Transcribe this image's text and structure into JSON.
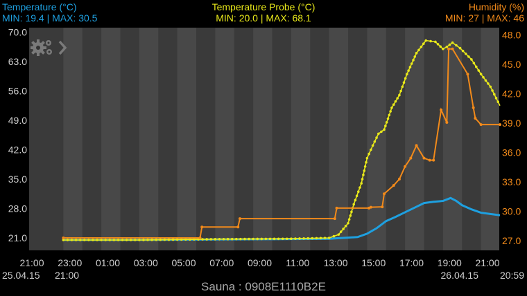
{
  "header": {
    "left_title": "Temperature (°C)",
    "left_minmax": "MIN: 19.4 | MAX: 30.5",
    "center_title": "Temperature Probe (°C)",
    "center_minmax": "MIN: 20.0 | MAX: 68.1",
    "right_title": "Humidity (%)",
    "right_minmax": "MIN: 27 | MAX: 46"
  },
  "footer": {
    "device": "Sauna : 0908E1110B2E"
  },
  "dates": {
    "start_date": "25.04.15",
    "start_hour": "21:00",
    "end_date": "26.04.15",
    "end_hour": "20:59"
  },
  "settings": {
    "icon": "gear-icon",
    "arrow_icon": "chevron-right-icon"
  },
  "colors": {
    "temperature": "#1ea0e0",
    "probe": "#e8e81a",
    "humidity": "#f28a1a"
  },
  "chart_data": {
    "type": "line",
    "x_unit": "hours",
    "x_tick_labels": [
      "21:00",
      "23:00",
      "01:00",
      "03:00",
      "05:00",
      "07:00",
      "09:00",
      "11:00",
      "13:00",
      "15:00",
      "17:00",
      "19:00",
      "21:00"
    ],
    "x_tick_hours": [
      0,
      2,
      4,
      6,
      8,
      10,
      12,
      14,
      16,
      18,
      20,
      22,
      24
    ],
    "left_axis": {
      "ticks": [
        "21.0",
        "28.0",
        "35.0",
        "42.0",
        "49.0",
        "56.0",
        "63.0",
        "70.0"
      ],
      "ylim": [
        21,
        70
      ]
    },
    "right_axis": {
      "ticks": [
        "27.0",
        "30.0",
        "33.0",
        "36.0",
        "39.0",
        "42.0",
        "45.0",
        "48.0"
      ],
      "ylim": [
        27,
        48
      ]
    },
    "series": [
      {
        "name": "Temperature (°C)",
        "axis": "left",
        "x": [
          1,
          4,
          8,
          12,
          15,
          16.5,
          17,
          17.5,
          18,
          18.5,
          19,
          19.5,
          20,
          20.5,
          21,
          21.4,
          21.7,
          22,
          22.5,
          23,
          24
        ],
        "y": [
          20.5,
          20.5,
          20.6,
          20.7,
          20.8,
          21.2,
          22.0,
          23.3,
          25.0,
          26.0,
          27.1,
          28.2,
          29.3,
          29.6,
          29.8,
          30.5,
          29.8,
          28.8,
          27.8,
          27.0,
          26.4
        ]
      },
      {
        "name": "Temperature Probe (°C)",
        "axis": "left",
        "x": [
          1,
          5,
          9,
          13,
          15,
          15.5,
          16,
          16.3,
          16.7,
          17,
          17.3,
          17.6,
          17.9,
          18.3,
          18.7,
          19.1,
          19.6,
          20.1,
          20.6,
          21,
          21.2,
          21.5,
          21.9,
          22.5,
          23,
          23.5,
          24
        ],
        "y": [
          20.5,
          20.5,
          20.7,
          20.8,
          21.0,
          21.8,
          24.5,
          29.0,
          34.0,
          40.0,
          43.0,
          45.8,
          46.8,
          52.0,
          55.0,
          60.0,
          65.0,
          68.0,
          67.7,
          66.0,
          66.5,
          67.5,
          66.2,
          63.5,
          60.0,
          57.0,
          52.5
        ]
      },
      {
        "name": "Humidity (%)",
        "axis": "left",
        "x": [
          1,
          8.2,
          8.3,
          10.2,
          10.3,
          15.3,
          15.4,
          17.1,
          17.2,
          17.8,
          17.9,
          18.4,
          18.7,
          19,
          19.3,
          19.6,
          20,
          20.3,
          20.5,
          20.9,
          21.2,
          21.3,
          21.5,
          22.3,
          22.6,
          22.7,
          23,
          24
        ],
        "y": [
          21.0,
          21.0,
          23.6,
          23.6,
          25.6,
          25.6,
          28.1,
          28.1,
          28.3,
          28.4,
          31.5,
          33.5,
          35.0,
          38.0,
          40.0,
          43.0,
          40.0,
          39.5,
          39.5,
          51.5,
          48.5,
          66.0,
          66.0,
          60.0,
          52.0,
          49.5,
          48.0,
          48.0
        ]
      }
    ]
  }
}
